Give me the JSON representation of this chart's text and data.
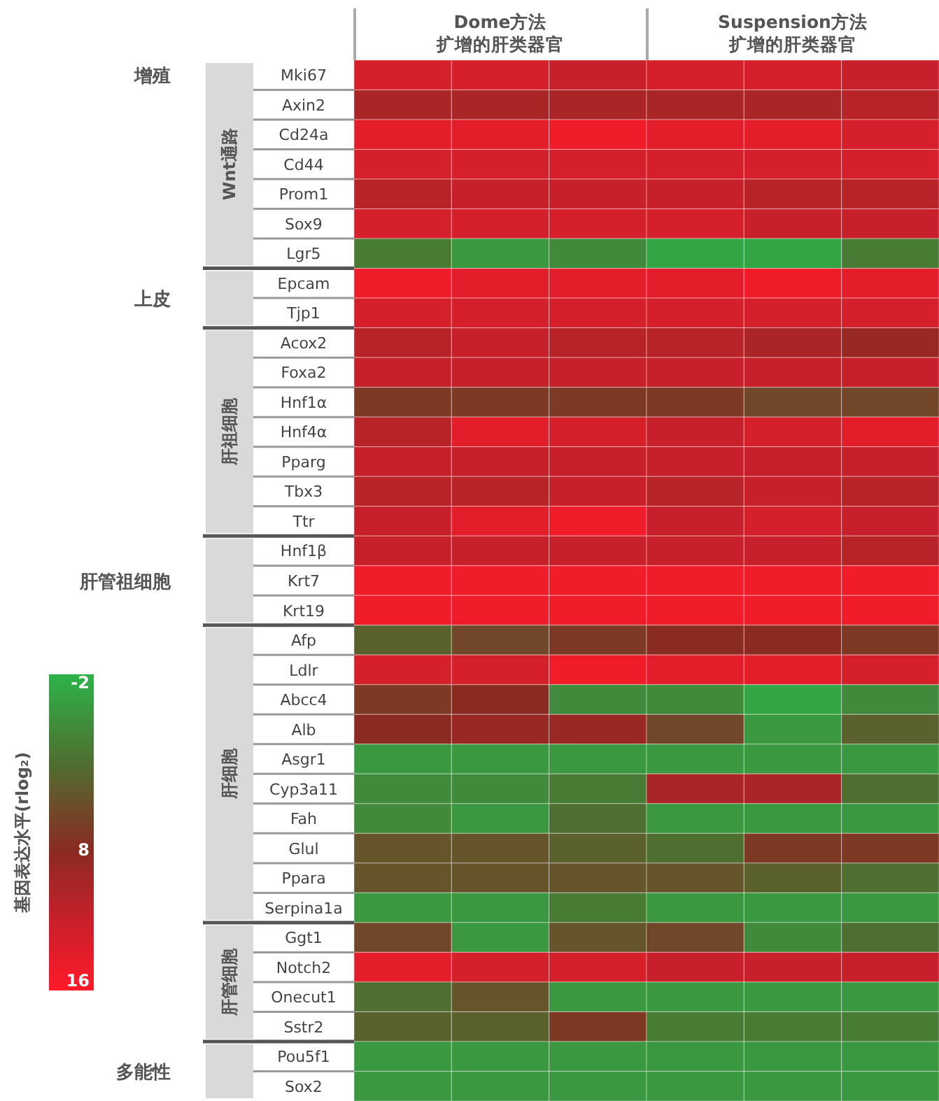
{
  "chart_data": {
    "type": "heatmap",
    "clabel": "基因表达水平(rlog₂)",
    "clim": [
      -2,
      16
    ],
    "cticks": [
      -2,
      8,
      16
    ],
    "categories": [
      null,
      null,
      null,
      null,
      null,
      null
    ],
    "y_categories": [
      "Mki67",
      "Axin2",
      "Cd24a",
      "Cd44",
      "Prom1",
      "Sox9",
      "Lgr5",
      "Epcam",
      "Tjp1",
      "Acox2",
      "Foxa2",
      "Hnf1α",
      "Hnf4α",
      "Pparg",
      "Tbx3",
      "Ttr",
      "Hnf1β",
      "Krt7",
      "Krt19",
      "Afp",
      "Ldlr",
      "Abcc4",
      "Alb",
      "Asgr1",
      "Cyp3a11",
      "Fah",
      "Glul",
      "Ppara",
      "Serpina1a",
      "Ggt1",
      "Notch2",
      "Onecut1",
      "Sstr2",
      "Pou5f1",
      "Sox2"
    ],
    "cells": [
      [
        13,
        13,
        12,
        13,
        13,
        12
      ],
      [
        10,
        10,
        10,
        10,
        10,
        11
      ],
      [
        14,
        14,
        15,
        14,
        14,
        13
      ],
      [
        13,
        13,
        13,
        13,
        13,
        13
      ],
      [
        11,
        12,
        12,
        12,
        11,
        11
      ],
      [
        13,
        13,
        13,
        13,
        12,
        12
      ],
      [
        2,
        0,
        1,
        -1,
        -1,
        2
      ],
      [
        15,
        14,
        14,
        14,
        15,
        14
      ],
      [
        13,
        13,
        13,
        13,
        13,
        13
      ],
      [
        11,
        12,
        11,
        11,
        10,
        9
      ],
      [
        12,
        12,
        12,
        12,
        12,
        12
      ],
      [
        7,
        7,
        7,
        7,
        6,
        6
      ],
      [
        11,
        14,
        13,
        12,
        13,
        14
      ],
      [
        12,
        12,
        12,
        12,
        12,
        12
      ],
      [
        11,
        11,
        12,
        11,
        12,
        11
      ],
      [
        12,
        14,
        15,
        12,
        13,
        12
      ],
      [
        12,
        12,
        12,
        12,
        12,
        11
      ],
      [
        15,
        15,
        15,
        15,
        15,
        15
      ],
      [
        15,
        15,
        15,
        15,
        15,
        15
      ],
      [
        4,
        6,
        7,
        8,
        8,
        7
      ],
      [
        13,
        13,
        15,
        14,
        14,
        13
      ],
      [
        7,
        8,
        1,
        1,
        -1,
        1
      ],
      [
        8,
        9,
        9,
        6,
        0,
        4
      ],
      [
        0,
        0,
        0,
        0,
        0,
        0
      ],
      [
        1,
        1,
        2,
        10,
        10,
        3
      ],
      [
        1,
        0,
        3,
        0,
        0,
        0
      ],
      [
        5,
        5,
        4,
        3,
        7,
        7
      ],
      [
        5,
        5,
        5,
        5,
        4,
        3
      ],
      [
        0,
        0,
        2,
        0,
        0,
        0
      ],
      [
        6,
        0,
        5,
        6,
        1,
        3
      ],
      [
        14,
        13,
        13,
        12,
        12,
        12
      ],
      [
        3,
        5,
        0,
        0,
        0,
        0
      ],
      [
        4,
        4,
        7,
        2,
        2,
        2
      ],
      [
        0,
        0,
        0,
        0,
        0,
        0
      ],
      [
        0,
        0,
        0,
        0,
        0,
        0
      ]
    ],
    "annotations": [
      "Dome方法",
      "扩增的肝类器官",
      "Suspension方法",
      "扩增的肝类器官",
      "增殖",
      "上皮",
      "肝管祖细胞",
      "多能性",
      "Wnt通路",
      "肝祖细胞",
      "肝细胞",
      "肝管细胞"
    ]
  }
}
